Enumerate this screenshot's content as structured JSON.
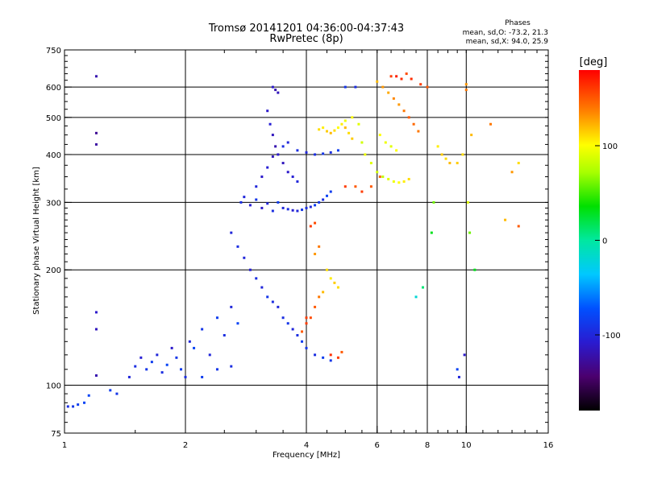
{
  "title_line1": "Tromsø 20141201 04:36:00-04:37:43",
  "title_line2": "RwPretec (8p)",
  "stats": {
    "heading": "Phases",
    "o_line": "mean, sd,O: -73.2, 21.3",
    "x_line": "mean, sd,X:  94.0, 25.9"
  },
  "chart_data": {
    "type": "scatter",
    "title": "Tromsø 20141201 04:36:00-04:37:43",
    "subtitle": "RwPretec (8p)",
    "xlabel": "Frequency [MHz]",
    "ylabel": "Stationary phase Virtual Height [km]",
    "x_scale": "log",
    "y_scale": "log",
    "xlim": [
      1,
      16
    ],
    "ylim": [
      75,
      750
    ],
    "x_ticks": [
      1,
      2,
      4,
      6,
      8,
      10,
      16
    ],
    "x_tick_labels": [
      "1",
      "2",
      "4",
      "6",
      "8",
      "10",
      "16"
    ],
    "y_ticks": [
      75,
      100,
      200,
      300,
      400,
      500,
      600,
      750
    ],
    "y_tick_labels": [
      "75",
      "100",
      "200",
      "300",
      "400",
      "500",
      "600",
      "750"
    ],
    "grid_x": [
      2,
      4,
      6,
      8,
      10
    ],
    "grid_y": [
      100,
      200,
      300,
      400,
      500,
      600
    ],
    "grid": true,
    "colorbar": {
      "label": "[deg]",
      "range": [
        -180,
        180
      ],
      "ticks": [
        100,
        0,
        -100
      ],
      "tick_labels": [
        "100",
        "0",
        "-100"
      ]
    },
    "series": [
      {
        "mode": "O",
        "points": [
          [
            1.02,
            88,
            -95
          ],
          [
            1.05,
            88,
            -90
          ],
          [
            1.08,
            89,
            -85
          ],
          [
            1.12,
            90,
            -80
          ],
          [
            1.2,
            640,
            -120
          ],
          [
            1.2,
            455,
            -130
          ],
          [
            1.2,
            425,
            -125
          ],
          [
            1.2,
            155,
            -110
          ],
          [
            1.2,
            140,
            -115
          ],
          [
            1.2,
            106,
            -120
          ],
          [
            1.45,
            105,
            -100
          ],
          [
            1.5,
            112,
            -95
          ],
          [
            1.55,
            118,
            -105
          ],
          [
            1.6,
            110,
            -90
          ],
          [
            1.65,
            115,
            -85
          ],
          [
            1.7,
            120,
            -100
          ],
          [
            1.75,
            108,
            -95
          ],
          [
            1.8,
            113,
            -80
          ],
          [
            1.85,
            125,
            -110
          ],
          [
            1.9,
            118,
            -90
          ],
          [
            1.95,
            110,
            -85
          ],
          [
            2.0,
            105,
            -95
          ],
          [
            2.05,
            130,
            -100
          ],
          [
            2.1,
            125,
            -80
          ],
          [
            2.2,
            140,
            -90
          ],
          [
            2.3,
            120,
            -100
          ],
          [
            2.4,
            150,
            -85
          ],
          [
            2.5,
            135,
            -95
          ],
          [
            2.6,
            160,
            -100
          ],
          [
            2.7,
            145,
            -80
          ],
          [
            2.75,
            300,
            -95
          ],
          [
            2.8,
            310,
            -100
          ],
          [
            2.9,
            295,
            -105
          ],
          [
            3.0,
            305,
            -90
          ],
          [
            3.1,
            290,
            -110
          ],
          [
            3.2,
            298,
            -100
          ],
          [
            3.3,
            285,
            -95
          ],
          [
            3.4,
            300,
            -85
          ],
          [
            3.5,
            290,
            -100
          ],
          [
            3.6,
            288,
            -95
          ],
          [
            3.7,
            286,
            -105
          ],
          [
            3.8,
            285,
            -100
          ],
          [
            3.9,
            287,
            -90
          ],
          [
            4.0,
            290,
            -95
          ],
          [
            4.1,
            292,
            -100
          ],
          [
            4.2,
            295,
            -85
          ],
          [
            4.3,
            300,
            -90
          ],
          [
            4.4,
            305,
            -95
          ],
          [
            4.5,
            312,
            -80
          ],
          [
            4.6,
            320,
            -85
          ],
          [
            2.6,
            250,
            -100
          ],
          [
            2.7,
            230,
            -95
          ],
          [
            2.8,
            215,
            -100
          ],
          [
            2.9,
            200,
            -105
          ],
          [
            3.0,
            190,
            -95
          ],
          [
            3.1,
            180,
            -100
          ],
          [
            3.2,
            170,
            -90
          ],
          [
            3.3,
            165,
            -95
          ],
          [
            3.4,
            160,
            -100
          ],
          [
            3.5,
            150,
            -95
          ],
          [
            3.6,
            145,
            -90
          ],
          [
            3.7,
            140,
            -100
          ],
          [
            3.8,
            135,
            -95
          ],
          [
            3.9,
            130,
            -85
          ],
          [
            4.0,
            125,
            -90
          ],
          [
            4.2,
            120,
            -95
          ],
          [
            4.4,
            118,
            -85
          ],
          [
            4.6,
            116,
            -90
          ],
          [
            3.3,
            600,
            -110
          ],
          [
            3.35,
            590,
            -120
          ],
          [
            3.4,
            580,
            -115
          ],
          [
            3.2,
            520,
            -110
          ],
          [
            3.25,
            480,
            -105
          ],
          [
            3.3,
            450,
            -115
          ],
          [
            3.35,
            420,
            -120
          ],
          [
            3.4,
            400,
            -110
          ],
          [
            3.5,
            380,
            -115
          ],
          [
            3.6,
            360,
            -110
          ],
          [
            3.7,
            350,
            -105
          ],
          [
            3.8,
            340,
            -100
          ],
          [
            3.5,
            420,
            -95
          ],
          [
            3.6,
            430,
            -100
          ],
          [
            3.8,
            410,
            -95
          ],
          [
            4.0,
            405,
            -100
          ],
          [
            4.2,
            400,
            -95
          ],
          [
            4.4,
            402,
            -90
          ],
          [
            4.6,
            405,
            -95
          ],
          [
            4.8,
            410,
            -85
          ],
          [
            3.0,
            330,
            -100
          ],
          [
            3.1,
            350,
            -110
          ],
          [
            3.2,
            370,
            -105
          ],
          [
            3.3,
            395,
            -115
          ],
          [
            1.35,
            95,
            -90
          ],
          [
            1.3,
            97,
            -85
          ],
          [
            1.15,
            94,
            -80
          ],
          [
            2.2,
            105,
            -85
          ],
          [
            2.4,
            110,
            -90
          ],
          [
            2.6,
            112,
            -95
          ],
          [
            5.0,
            600,
            -90
          ],
          [
            5.3,
            600,
            -95
          ]
        ]
      },
      {
        "mode": "X",
        "points": [
          [
            4.3,
            465,
            110
          ],
          [
            4.4,
            470,
            105
          ],
          [
            4.5,
            460,
            115
          ],
          [
            4.6,
            455,
            120
          ],
          [
            4.7,
            462,
            110
          ],
          [
            4.8,
            470,
            100
          ],
          [
            4.9,
            480,
            105
          ],
          [
            5.0,
            490,
            95
          ],
          [
            5.2,
            500,
            100
          ],
          [
            5.4,
            480,
            90
          ],
          [
            5.5,
            430,
            85
          ],
          [
            5.6,
            400,
            95
          ],
          [
            5.8,
            380,
            90
          ],
          [
            6.0,
            360,
            85
          ],
          [
            6.2,
            350,
            80
          ],
          [
            6.4,
            345,
            90
          ],
          [
            6.6,
            340,
            95
          ],
          [
            6.8,
            338,
            100
          ],
          [
            7.0,
            340,
            105
          ],
          [
            7.2,
            345,
            110
          ],
          [
            6.0,
            620,
            120
          ],
          [
            6.2,
            600,
            130
          ],
          [
            6.4,
            580,
            125
          ],
          [
            6.6,
            560,
            135
          ],
          [
            6.8,
            540,
            130
          ],
          [
            7.0,
            520,
            140
          ],
          [
            7.2,
            500,
            150
          ],
          [
            7.4,
            480,
            145
          ],
          [
            7.6,
            460,
            140
          ],
          [
            6.5,
            640,
            160
          ],
          [
            6.7,
            640,
            170
          ],
          [
            6.9,
            630,
            165
          ],
          [
            7.1,
            650,
            155
          ],
          [
            5.0,
            470,
            120
          ],
          [
            5.1,
            455,
            110
          ],
          [
            5.2,
            440,
            115
          ],
          [
            6.1,
            450,
            100
          ],
          [
            6.3,
            430,
            95
          ],
          [
            6.5,
            420,
            90
          ],
          [
            6.7,
            410,
            100
          ],
          [
            4.5,
            200,
            110
          ],
          [
            4.6,
            190,
            105
          ],
          [
            4.7,
            185,
            115
          ],
          [
            4.8,
            180,
            110
          ],
          [
            4.4,
            175,
            120
          ],
          [
            4.3,
            170,
            140
          ],
          [
            4.2,
            160,
            150
          ],
          [
            4.0,
            150,
            160
          ],
          [
            4.2,
            265,
            155
          ],
          [
            4.1,
            260,
            160
          ],
          [
            4.3,
            230,
            140
          ],
          [
            4.2,
            220,
            130
          ],
          [
            4.6,
            120,
            165
          ],
          [
            4.8,
            118,
            160
          ],
          [
            4.9,
            122,
            150
          ],
          [
            5.3,
            330,
            150
          ],
          [
            5.5,
            320,
            160
          ],
          [
            5.8,
            330,
            150
          ],
          [
            6.1,
            350,
            145
          ],
          [
            5.0,
            330,
            160
          ],
          [
            4.0,
            145,
            160
          ],
          [
            3.9,
            138,
            150
          ],
          [
            4.1,
            150,
            155
          ],
          [
            8.2,
            250,
            30
          ],
          [
            8.3,
            300,
            60
          ],
          [
            7.8,
            180,
            10
          ],
          [
            7.5,
            170,
            -20
          ],
          [
            9.5,
            110,
            -80
          ],
          [
            9.6,
            105,
            -100
          ],
          [
            9.9,
            120,
            -110
          ],
          [
            10.0,
            610,
            130
          ],
          [
            10.0,
            590,
            140
          ],
          [
            10.3,
            450,
            120
          ],
          [
            9.8,
            400,
            110
          ],
          [
            9.5,
            380,
            115
          ],
          [
            10.1,
            300,
            90
          ],
          [
            10.2,
            250,
            60
          ],
          [
            10.5,
            200,
            30
          ],
          [
            11.5,
            480,
            140
          ],
          [
            12.5,
            270,
            120
          ],
          [
            13.5,
            260,
            150
          ],
          [
            13.0,
            360,
            130
          ],
          [
            13.5,
            380,
            110
          ],
          [
            8.7,
            400,
            115
          ],
          [
            8.9,
            390,
            110
          ],
          [
            9.1,
            380,
            120
          ],
          [
            8.5,
            420,
            105
          ],
          [
            8.0,
            600,
            150
          ],
          [
            7.7,
            610,
            160
          ],
          [
            7.3,
            630,
            165
          ]
        ]
      }
    ]
  }
}
